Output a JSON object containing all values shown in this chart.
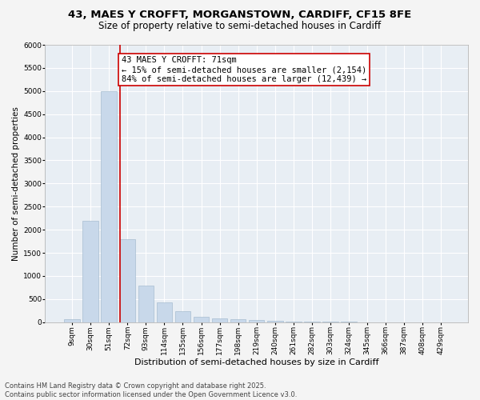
{
  "title1": "43, MAES Y CROFFT, MORGANSTOWN, CARDIFF, CF15 8FE",
  "title2": "Size of property relative to semi-detached houses in Cardiff",
  "xlabel": "Distribution of semi-detached houses by size in Cardiff",
  "ylabel": "Number of semi-detached properties",
  "footer": "Contains HM Land Registry data © Crown copyright and database right 2025.\nContains public sector information licensed under the Open Government Licence v3.0.",
  "property_label": "43 MAES Y CROFFT: 71sqm",
  "pct_smaller": "15% of semi-detached houses are smaller (2,154)",
  "pct_larger": "84% of semi-detached houses are larger (12,439)",
  "categories": [
    "9sqm",
    "30sqm",
    "51sqm",
    "72sqm",
    "93sqm",
    "114sqm",
    "135sqm",
    "156sqm",
    "177sqm",
    "198sqm",
    "219sqm",
    "240sqm",
    "261sqm",
    "282sqm",
    "303sqm",
    "324sqm",
    "345sqm",
    "366sqm",
    "387sqm",
    "408sqm",
    "429sqm"
  ],
  "bar_values": [
    60,
    2200,
    5000,
    1800,
    800,
    430,
    230,
    115,
    80,
    60,
    40,
    25,
    18,
    12,
    8,
    6,
    4,
    3,
    2,
    2,
    1
  ],
  "bar_color": "#c8d8ea",
  "bar_edge_color": "#9ab4ca",
  "redline_color": "#cc0000",
  "annotation_box_edge_color": "#cc0000",
  "annotation_text_color": "#000000",
  "background_color": "#e8eef4",
  "grid_color": "#ffffff",
  "fig_bg_color": "#f4f4f4",
  "ylim": [
    0,
    6000
  ],
  "yticks": [
    0,
    500,
    1000,
    1500,
    2000,
    2500,
    3000,
    3500,
    4000,
    4500,
    5000,
    5500,
    6000
  ],
  "redline_bin_idx": 3,
  "title1_fontsize": 9.5,
  "title2_fontsize": 8.5,
  "xlabel_fontsize": 8,
  "ylabel_fontsize": 7.5,
  "tick_fontsize": 6.5,
  "annot_fontsize": 7.5,
  "footer_fontsize": 6
}
